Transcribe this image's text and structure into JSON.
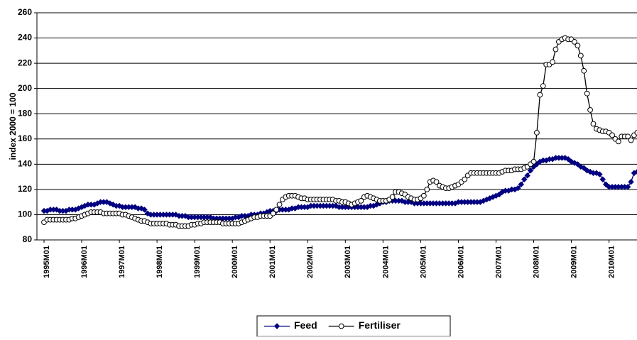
{
  "chart_data": {
    "type": "line",
    "y_label": "index 2000 = 100",
    "ylim": [
      80,
      260
    ],
    "yticks": [
      80,
      100,
      120,
      140,
      160,
      180,
      200,
      220,
      240,
      260
    ],
    "grid": true,
    "legend": "bottom",
    "categories": [
      "1995M01",
      null,
      null,
      null,
      null,
      null,
      null,
      null,
      null,
      null,
      null,
      null,
      "1996M01",
      null,
      null,
      null,
      null,
      null,
      null,
      null,
      null,
      null,
      null,
      null,
      "1997M01",
      null,
      null,
      null,
      null,
      null,
      null,
      null,
      null,
      null,
      null,
      null,
      "1998M01",
      null,
      null,
      null,
      null,
      null,
      null,
      null,
      null,
      null,
      null,
      null,
      "1999M01",
      null,
      null,
      null,
      null,
      null,
      null,
      null,
      null,
      null,
      null,
      null,
      "2000M01",
      null,
      null,
      null,
      null,
      null,
      null,
      null,
      null,
      null,
      null,
      null,
      "2001M01",
      null,
      null,
      null,
      null,
      null,
      null,
      null,
      null,
      null,
      null,
      null,
      "2002M01",
      null,
      null,
      null,
      null,
      null,
      null,
      null,
      null,
      null,
      null,
      null,
      "2003M01",
      null,
      null,
      null,
      null,
      null,
      null,
      null,
      null,
      null,
      null,
      null,
      "2004M01",
      null,
      null,
      null,
      null,
      null,
      null,
      null,
      null,
      null,
      null,
      null,
      "2005M01",
      null,
      null,
      null,
      null,
      null,
      null,
      null,
      null,
      null,
      null,
      null,
      "2006M01",
      null,
      null,
      null,
      null,
      null,
      null,
      null,
      null,
      null,
      null,
      null,
      "2007M01",
      null,
      null,
      null,
      null,
      null,
      null,
      null,
      null,
      null,
      null,
      null,
      "2008M01",
      null,
      null,
      null,
      null,
      null,
      null,
      null,
      null,
      null,
      null,
      null,
      "2009M01",
      null,
      null,
      null,
      null,
      null,
      null,
      null,
      null,
      null,
      null,
      null,
      "2010M01",
      null,
      null,
      null,
      null,
      null,
      null,
      null,
      null,
      null
    ],
    "series": [
      {
        "name": "Feed",
        "color": "#000080",
        "marker": "diamond",
        "values": [
          103,
          103,
          104,
          104,
          104,
          103,
          103,
          103,
          104,
          104,
          104,
          105,
          106,
          107,
          108,
          108,
          108,
          109,
          110,
          110,
          110,
          109,
          108,
          107,
          107,
          106,
          106,
          106,
          106,
          106,
          105,
          105,
          104,
          101,
          100,
          100,
          100,
          100,
          100,
          100,
          100,
          100,
          100,
          99,
          99,
          99,
          98,
          98,
          98,
          98,
          98,
          98,
          98,
          98,
          97,
          97,
          97,
          97,
          97,
          97,
          97,
          98,
          98,
          99,
          99,
          99,
          100,
          100,
          100,
          101,
          101,
          102,
          103,
          103,
          103,
          104,
          104,
          104,
          104,
          105,
          105,
          106,
          106,
          106,
          106,
          107,
          107,
          107,
          107,
          107,
          107,
          107,
          107,
          107,
          106,
          106,
          106,
          106,
          106,
          106,
          106,
          106,
          106,
          106,
          107,
          107,
          108,
          109,
          110,
          110,
          111,
          111,
          111,
          111,
          111,
          110,
          110,
          110,
          109,
          109,
          109,
          109,
          109,
          109,
          109,
          109,
          109,
          109,
          109,
          109,
          109,
          109,
          110,
          110,
          110,
          110,
          110,
          110,
          110,
          110,
          111,
          112,
          113,
          114,
          115,
          116,
          118,
          119,
          119,
          120,
          120,
          121,
          124,
          128,
          131,
          135,
          138,
          140,
          142,
          143,
          143,
          144,
          144,
          145,
          145,
          145,
          145,
          144,
          142,
          141,
          140,
          138,
          137,
          135,
          134,
          133,
          133,
          132,
          128,
          124,
          122,
          122,
          122,
          122,
          122,
          122,
          122,
          126,
          133,
          134
        ]
      },
      {
        "name": "Fertiliser",
        "color": "#000000",
        "marker": "circle",
        "values": [
          94,
          96,
          96,
          96,
          96,
          96,
          96,
          96,
          96,
          97,
          97,
          98,
          99,
          100,
          101,
          102,
          102,
          102,
          102,
          101,
          101,
          101,
          101,
          101,
          101,
          100,
          100,
          99,
          98,
          97,
          96,
          95,
          95,
          94,
          93,
          93,
          93,
          93,
          93,
          93,
          92,
          92,
          92,
          91,
          91,
          91,
          91,
          92,
          92,
          93,
          93,
          94,
          94,
          94,
          94,
          94,
          94,
          93,
          93,
          93,
          93,
          93,
          93,
          94,
          95,
          96,
          97,
          98,
          98,
          99,
          99,
          99,
          99,
          101,
          104,
          108,
          112,
          114,
          115,
          115,
          115,
          114,
          113,
          113,
          112,
          112,
          112,
          112,
          112,
          112,
          112,
          112,
          112,
          111,
          111,
          110,
          110,
          109,
          108,
          109,
          110,
          111,
          114,
          115,
          114,
          113,
          112,
          111,
          111,
          111,
          112,
          114,
          118,
          118,
          117,
          116,
          114,
          113,
          112,
          112,
          113,
          115,
          120,
          126,
          127,
          126,
          123,
          122,
          121,
          121,
          122,
          123,
          124,
          126,
          128,
          131,
          133,
          133,
          133,
          133,
          133,
          133,
          133,
          133,
          133,
          133,
          134,
          135,
          135,
          135,
          136,
          136,
          136,
          137,
          138,
          140,
          142,
          165,
          195,
          202,
          219,
          219,
          221,
          231,
          237,
          239,
          240,
          239,
          239,
          237,
          234,
          226,
          214,
          196,
          183,
          172,
          168,
          167,
          166,
          166,
          165,
          163,
          160,
          158,
          162,
          162,
          162,
          159,
          163,
          165
        ]
      }
    ]
  }
}
